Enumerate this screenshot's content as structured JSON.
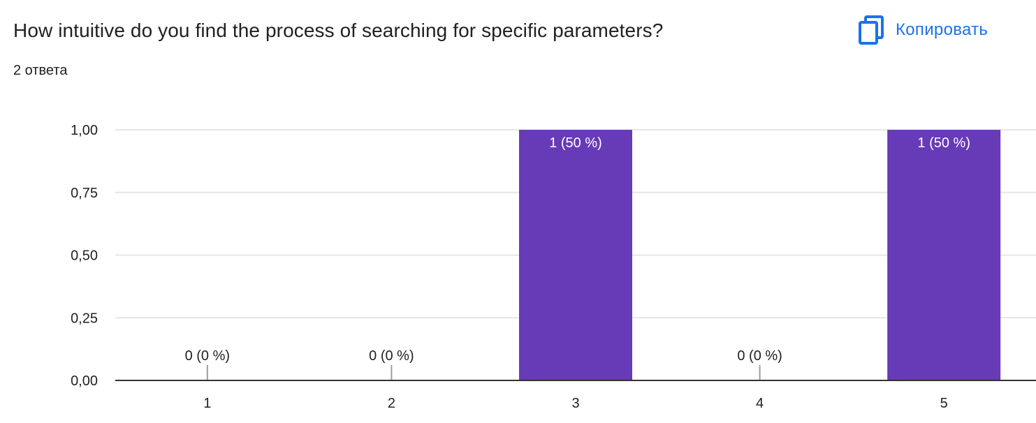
{
  "question": {
    "title": "How intuitive do you find the process of searching for specific parameters?",
    "responses": "2 ответа"
  },
  "toolbar": {
    "copy_label": "Копировать",
    "copy_icon": "copy-icon"
  },
  "colors": {
    "bar": "#673ab7",
    "accent": "#1a73e8",
    "grid": "#e6e6e6",
    "axis": "#333333",
    "text": "#202124"
  },
  "chart_data": {
    "type": "bar",
    "categories": [
      "1",
      "2",
      "3",
      "4",
      "5"
    ],
    "values": [
      0,
      0,
      1,
      0,
      1
    ],
    "data_labels": [
      "0 (0 %)",
      "0 (0 %)",
      "1 (50 %)",
      "0 (0 %)",
      "1 (50 %)"
    ],
    "y_ticks": [
      "0,00",
      "0,25",
      "0,50",
      "0,75",
      "1,00"
    ],
    "ylim": [
      0,
      1
    ],
    "grid": true,
    "legend": "none"
  }
}
